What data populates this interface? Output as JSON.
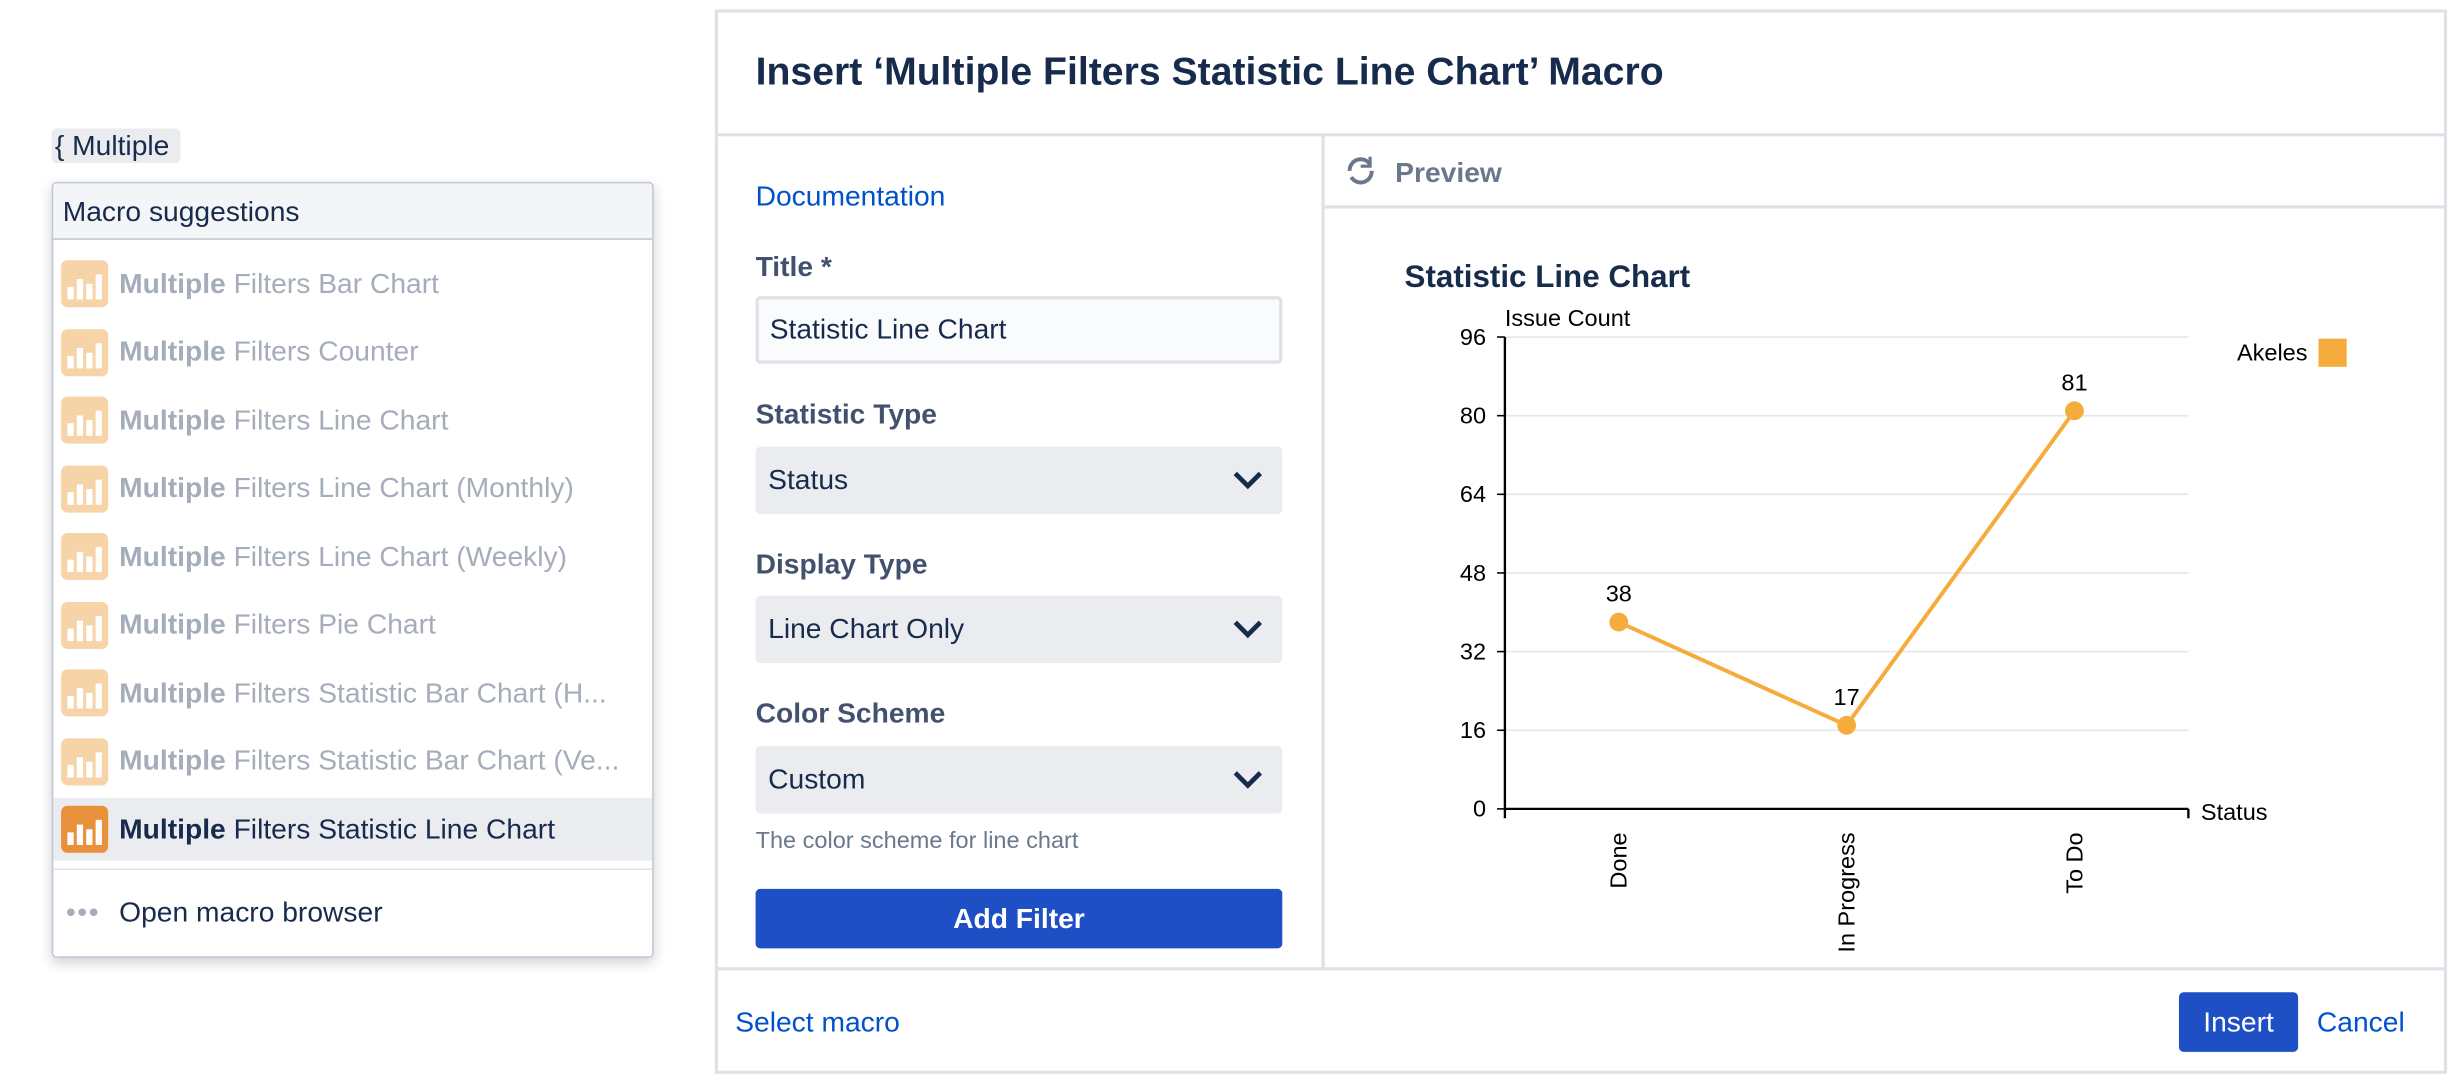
{
  "editor": {
    "input": "{ Multiple"
  },
  "suggestions": {
    "header": "Macro suggestions",
    "items": [
      {
        "match": "Multiple",
        "rest": "Filters Bar Chart"
      },
      {
        "match": "Multiple",
        "rest": "Filters Counter"
      },
      {
        "match": "Multiple",
        "rest": "Filters Line Chart"
      },
      {
        "match": "Multiple",
        "rest": "Filters Line Chart (Monthly)"
      },
      {
        "match": "Multiple",
        "rest": "Filters Line Chart (Weekly)"
      },
      {
        "match": "Multiple",
        "rest": "Filters Pie Chart"
      },
      {
        "match": "Multiple",
        "rest": "Filters Statistic Bar Chart (H..."
      },
      {
        "match": "Multiple",
        "rest": "Filters Statistic Bar Chart (Ve..."
      },
      {
        "match": "Multiple",
        "rest": "Filters Statistic Line Chart"
      }
    ],
    "browse": "Open macro browser"
  },
  "dialog": {
    "title": "Insert ‘Multiple Filters Statistic Line Chart’ Macro",
    "documentation": "Documentation",
    "fields": [
      {
        "label": "Title *",
        "value": "Statistic Line Chart"
      },
      {
        "label": "Statistic Type",
        "value": "Status"
      },
      {
        "label": "Display Type",
        "value": "Line Chart Only"
      },
      {
        "label": "Color Scheme",
        "value": "Custom",
        "help": "The color scheme for line chart"
      }
    ],
    "add_filter": "Add Filter",
    "preview": "Preview",
    "select_macro": "Select macro",
    "insert": "Insert",
    "cancel": "Cancel"
  },
  "chart_data": {
    "type": "line",
    "title": "Statistic Line Chart",
    "y_label": "Issue Count",
    "x_label": "Status",
    "categories": [
      "Done",
      "In Progress",
      "To Do"
    ],
    "series": [
      {
        "name": "Akeles",
        "color": "#f5ac3c",
        "values": [
          38,
          17,
          81
        ]
      }
    ],
    "ylim": [
      0,
      96
    ],
    "yticks": [
      0,
      16,
      32,
      48,
      64,
      80,
      96
    ],
    "grid": true,
    "legend": "top-right"
  }
}
